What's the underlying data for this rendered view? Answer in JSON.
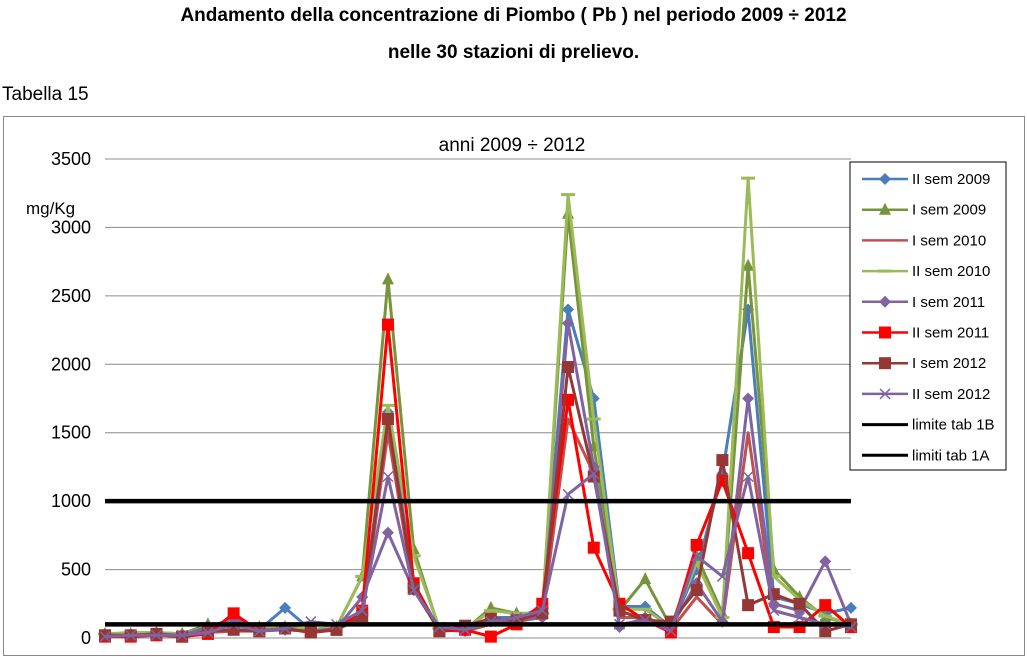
{
  "header": {
    "title_line1": "Andamento della concentrazione di Piombo ( Pb ) nel periodo 2009 ÷ 2012",
    "title_line2": "nelle 30 stazioni di prelievo."
  },
  "table_label": "Tabella 15",
  "chart_data": {
    "type": "line",
    "title": "anni 2009 ÷ 2012",
    "ylabel": "mg/Kg",
    "xlabel": "",
    "ylim": [
      0,
      3500
    ],
    "yticks": [
      0,
      500,
      1000,
      1500,
      2000,
      2500,
      3000,
      3500
    ],
    "grid": true,
    "legend_position": "right",
    "x": [
      1,
      2,
      3,
      4,
      5,
      6,
      7,
      8,
      9,
      10,
      11,
      12,
      13,
      14,
      15,
      16,
      17,
      18,
      19,
      20,
      21,
      22,
      23,
      24,
      25,
      26,
      27,
      28,
      29,
      30
    ],
    "series": [
      {
        "name": "II sem 2009",
        "color": "#4A7EBB",
        "marker": "diamond",
        "values": [
          20,
          20,
          30,
          20,
          60,
          150,
          60,
          220,
          60,
          80,
          180,
          1650,
          400,
          60,
          60,
          150,
          150,
          220,
          2400,
          1750,
          230,
          230,
          80,
          500,
          1200,
          2400,
          300,
          250,
          180,
          220
        ]
      },
      {
        "name": "I sem 2009",
        "color": "#77933C",
        "marker": "triangle",
        "values": [
          30,
          30,
          40,
          30,
          100,
          100,
          80,
          80,
          60,
          80,
          450,
          2620,
          650,
          60,
          60,
          220,
          180,
          180,
          3100,
          1400,
          200,
          430,
          80,
          600,
          180,
          2720,
          500,
          300,
          150,
          100
        ]
      },
      {
        "name": "I sem 2010",
        "color": "#C0504D",
        "marker": "line",
        "values": [
          20,
          20,
          30,
          20,
          40,
          50,
          50,
          60,
          50,
          60,
          150,
          1500,
          350,
          60,
          50,
          100,
          120,
          150,
          1600,
          1200,
          150,
          150,
          60,
          300,
          100,
          1500,
          200,
          150,
          100,
          80
        ]
      },
      {
        "name": "II sem 2010",
        "color": "#9BBB59",
        "marker": "dash",
        "values": [
          30,
          40,
          40,
          30,
          80,
          80,
          70,
          90,
          60,
          80,
          450,
          1700,
          600,
          70,
          60,
          200,
          180,
          180,
          3240,
          1600,
          210,
          210,
          80,
          550,
          150,
          3360,
          450,
          280,
          160,
          100
        ]
      },
      {
        "name": "I sem 2011",
        "color": "#8064A2",
        "marker": "diamond",
        "values": [
          20,
          20,
          30,
          20,
          80,
          140,
          60,
          60,
          50,
          70,
          300,
          770,
          350,
          60,
          50,
          120,
          130,
          150,
          2300,
          1250,
          80,
          150,
          80,
          400,
          120,
          1750,
          250,
          200,
          560,
          100
        ]
      },
      {
        "name": "II sem 2011",
        "color": "#FF0000",
        "marker": "square",
        "values": [
          10,
          10,
          20,
          10,
          30,
          180,
          50,
          70,
          40,
          60,
          200,
          2290,
          400,
          50,
          60,
          10,
          100,
          250,
          1740,
          660,
          250,
          130,
          40,
          680,
          1150,
          620,
          80,
          80,
          240,
          80
        ]
      },
      {
        "name": "I sem 2012",
        "color": "#953735",
        "marker": "square",
        "values": [
          20,
          20,
          30,
          10,
          50,
          60,
          50,
          70,
          40,
          60,
          160,
          1600,
          360,
          50,
          90,
          140,
          130,
          180,
          1980,
          1180,
          200,
          130,
          120,
          350,
          1300,
          240,
          320,
          250,
          50,
          100
        ]
      },
      {
        "name": "II sem 2012",
        "color": "#8064A2",
        "marker": "x",
        "values": [
          10,
          20,
          20,
          20,
          40,
          100,
          50,
          70,
          120,
          100,
          200,
          1180,
          350,
          80,
          60,
          120,
          150,
          200,
          1050,
          1200,
          100,
          130,
          50,
          600,
          450,
          1180,
          200,
          150,
          100,
          80
        ]
      },
      {
        "name": "limite tab 1B",
        "color": "#000000",
        "marker": "none",
        "values": [
          1000,
          1000,
          1000,
          1000,
          1000,
          1000,
          1000,
          1000,
          1000,
          1000,
          1000,
          1000,
          1000,
          1000,
          1000,
          1000,
          1000,
          1000,
          1000,
          1000,
          1000,
          1000,
          1000,
          1000,
          1000,
          1000,
          1000,
          1000,
          1000,
          1000
        ]
      },
      {
        "name": "limiti tab 1A",
        "color": "#000000",
        "marker": "none",
        "values": [
          100,
          100,
          100,
          100,
          100,
          100,
          100,
          100,
          100,
          100,
          100,
          100,
          100,
          100,
          100,
          100,
          100,
          100,
          100,
          100,
          100,
          100,
          100,
          100,
          100,
          100,
          100,
          100,
          100,
          100
        ]
      }
    ]
  }
}
